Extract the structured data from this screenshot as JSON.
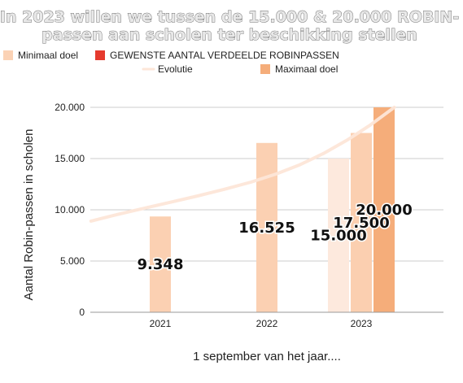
{
  "chart_data": {
    "type": "bar",
    "title_lines": [
      "In 2023 willen we tussen de 15.000 & 20.000 ROBIN-",
      "passen aan scholen ter beschikking stellen"
    ],
    "xlabel": "1 september van het jaar....",
    "ylabel": "Aantal Robin-passen in scholen",
    "ylim": [
      0,
      20000
    ],
    "yticks": [
      0,
      5000,
      10000,
      15000,
      20000
    ],
    "ytick_labels": [
      "0",
      "5.000",
      "10.000",
      "15.000",
      "20.000"
    ],
    "grid": true,
    "legend_placement": "top",
    "categories": [
      "2021",
      "2022",
      "2023"
    ],
    "legend": [
      {
        "label": "Minimaal doel",
        "symbol": "box",
        "color": "#fbd2b5"
      },
      {
        "label": "GEWENSTE  AANTAL VERDEELDE ROBINPASSEN",
        "symbol": "box",
        "color": "#e53a2e"
      },
      {
        "label": "Evolutie",
        "symbol": "line",
        "color": "#fde6d8"
      },
      {
        "label": "Maximaal doel",
        "symbol": "box",
        "color": "#f5ad7a"
      }
    ],
    "bars": [
      {
        "category": "2021",
        "slot": 0,
        "value": 9348,
        "label": "9.348",
        "color": "#fbd0b2"
      },
      {
        "category": "2022",
        "slot": 0,
        "value": 16525,
        "label": "16.525",
        "color": "#fbd0b2"
      },
      {
        "category": "2023",
        "slot": -1,
        "value": 15000,
        "label": "15.000",
        "color": "#fde9dd"
      },
      {
        "category": "2023",
        "slot": 0,
        "value": 17500,
        "label": "17.500",
        "color": "#fbcfb0"
      },
      {
        "category": "2023",
        "slot": 1,
        "value": 20000,
        "label": "20.000",
        "color": "#f5ad7a"
      }
    ],
    "trendline": {
      "color": "#fde6d8",
      "x": [
        2020.35,
        2020.6,
        2020.85,
        2021.1,
        2021.35,
        2021.6,
        2021.85,
        2022.1,
        2022.35,
        2022.6,
        2022.85,
        2023.1,
        2023.35
      ],
      "y": [
        8900,
        9550,
        10150,
        10750,
        11350,
        12000,
        12700,
        13500,
        14400,
        15500,
        16800,
        18300,
        20000
      ]
    },
    "colors": {
      "grid": "#cccccc",
      "axis": "#999999"
    }
  }
}
